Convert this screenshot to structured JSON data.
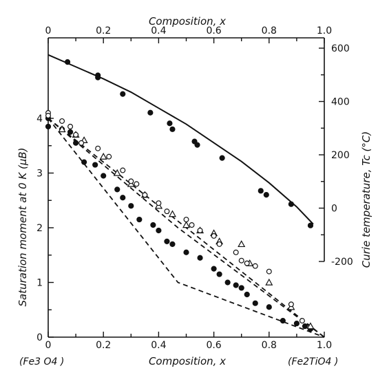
{
  "chart_data": {
    "type": "scatter",
    "title": "",
    "xlabel_top": "Composition, x",
    "xlabel_bottom": "Composition, x",
    "ylabel_left": "Saturation moment at 0 K (μB)",
    "ylabel_right": "Curie temperature, Tc (°C)",
    "end_labels": {
      "left": "(Fe3 O4 )",
      "right": "(Fe2TiO4 )"
    },
    "xlim": [
      0,
      1.0
    ],
    "ylim_left": [
      0,
      4
    ],
    "ylim_right": [
      -200,
      600
    ],
    "x_ticks_top": [
      "0",
      "0.2",
      "0.4",
      "0.6",
      "0.8",
      "1.0"
    ],
    "x_ticks_bottom": [
      "0",
      "0.2",
      "0.4",
      "0.6",
      "0.8",
      "1.0"
    ],
    "y_ticks_left": [
      "0",
      "1",
      "2",
      "3",
      "4"
    ],
    "y_ticks_right": [
      "600",
      "400",
      "200",
      "0",
      "-200"
    ],
    "grid": false,
    "legend": "none",
    "curie_curve": {
      "axis": "right",
      "x": [
        0,
        0.1,
        0.2,
        0.3,
        0.4,
        0.5,
        0.6,
        0.7,
        0.8,
        0.9,
        0.96
      ],
      "y": [
        575,
        530,
        485,
        435,
        375,
        315,
        245,
        175,
        95,
        5,
        -60
      ]
    },
    "curie_points": {
      "axis": "right",
      "marker": "filled-circle",
      "x": [
        0.07,
        0.18,
        0.18,
        0.27,
        0.37,
        0.44,
        0.45,
        0.53,
        0.54,
        0.63,
        0.77,
        0.79,
        0.88,
        0.95
      ],
      "y": [
        548,
        498,
        490,
        428,
        358,
        318,
        296,
        250,
        237,
        188,
        65,
        50,
        15,
        -65
      ]
    },
    "moment_series": [
      {
        "marker": "filled-circle",
        "x": [
          0.0,
          0.0,
          0.05,
          0.08,
          0.1,
          0.13,
          0.17,
          0.2,
          0.25,
          0.27,
          0.3,
          0.33,
          0.38,
          0.4,
          0.43,
          0.45,
          0.5,
          0.55,
          0.6,
          0.62,
          0.65,
          0.68,
          0.7,
          0.72,
          0.75,
          0.8,
          0.85,
          0.9,
          0.93,
          0.95
        ],
        "y": [
          4.0,
          3.85,
          3.8,
          3.75,
          3.55,
          3.2,
          3.15,
          2.95,
          2.7,
          2.55,
          2.4,
          2.15,
          2.05,
          1.95,
          1.75,
          1.7,
          1.55,
          1.45,
          1.25,
          1.15,
          1.0,
          0.95,
          0.9,
          0.78,
          0.62,
          0.55,
          0.3,
          0.25,
          0.2,
          0.15
        ]
      },
      {
        "marker": "open-triangle",
        "x": [
          0.05,
          0.1,
          0.13,
          0.2,
          0.25,
          0.3,
          0.35,
          0.4,
          0.45,
          0.5,
          0.55,
          0.6,
          0.62,
          0.7,
          0.73,
          0.8,
          0.88,
          0.95
        ],
        "y": [
          3.8,
          3.7,
          3.6,
          3.3,
          3.0,
          2.8,
          2.6,
          2.4,
          2.25,
          2.05,
          1.95,
          1.9,
          1.75,
          1.7,
          1.35,
          1.0,
          0.55,
          0.2
        ]
      },
      {
        "marker": "open-circle",
        "x": [
          0.0,
          0.0,
          0.05,
          0.08,
          0.1,
          0.12,
          0.18,
          0.22,
          0.27,
          0.3,
          0.32,
          0.35,
          0.4,
          0.43,
          0.5,
          0.52,
          0.55,
          0.6,
          0.62,
          0.68,
          0.7,
          0.72,
          0.75,
          0.8,
          0.88,
          0.92
        ],
        "y": [
          4.1,
          4.05,
          3.95,
          3.85,
          3.7,
          3.55,
          3.45,
          3.3,
          3.05,
          2.85,
          2.8,
          2.6,
          2.45,
          2.3,
          2.15,
          2.05,
          1.95,
          1.85,
          1.7,
          1.55,
          1.4,
          1.35,
          1.3,
          1.2,
          0.6,
          0.3
        ]
      }
    ],
    "reference_lines": [
      {
        "style": "dashed",
        "x": [
          0.0,
          1.0
        ],
        "y": [
          4.0,
          0.0
        ]
      },
      {
        "style": "dashed",
        "x": [
          0.0,
          0.47,
          1.0
        ],
        "y": [
          4.0,
          2.0,
          0.0
        ]
      },
      {
        "style": "dashed",
        "x": [
          0.0,
          0.47,
          1.0
        ],
        "y": [
          4.0,
          1.0,
          0.0
        ]
      }
    ]
  }
}
